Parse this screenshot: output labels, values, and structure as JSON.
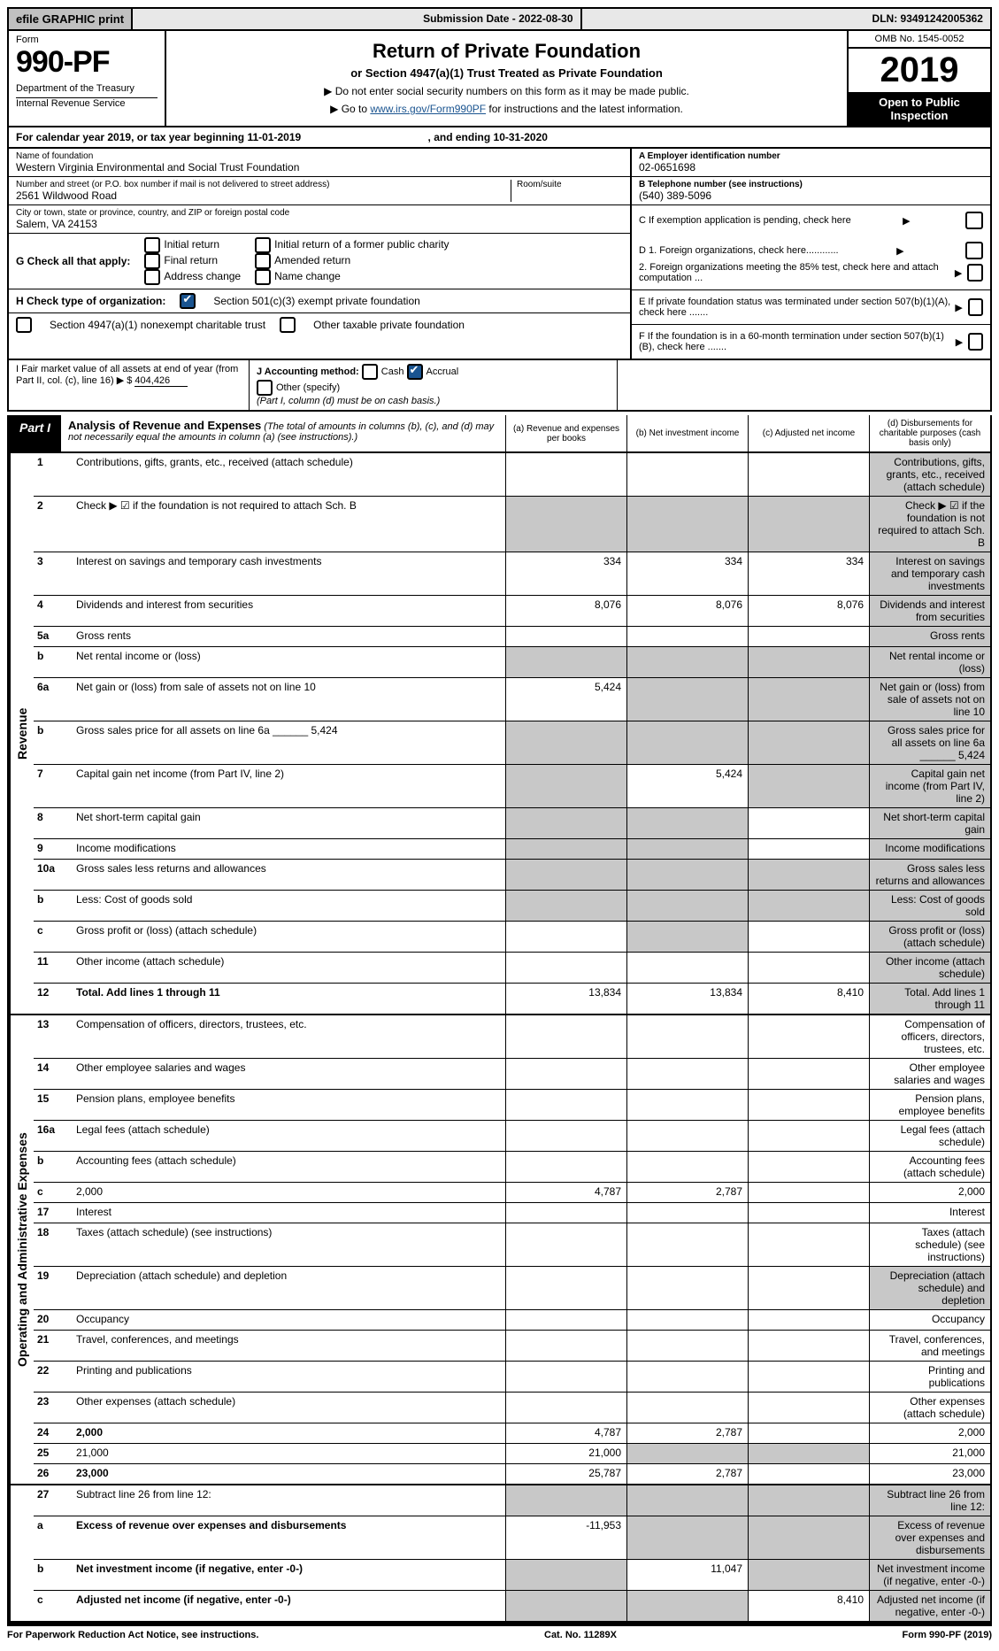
{
  "topbar": {
    "efile": "efile GRAPHIC print",
    "submission": "Submission Date - 2022-08-30",
    "dln": "DLN: 93491242005362"
  },
  "header": {
    "form_label": "Form",
    "form_number": "990-PF",
    "dept": "Department of the Treasury",
    "irs": "Internal Revenue Service",
    "title": "Return of Private Foundation",
    "subtitle": "or Section 4947(a)(1) Trust Treated as Private Foundation",
    "bullet1": "▶ Do not enter social security numbers on this form as it may be made public.",
    "bullet2_pre": "▶ Go to ",
    "bullet2_link": "www.irs.gov/Form990PF",
    "bullet2_post": " for instructions and the latest information.",
    "omb": "OMB No. 1545-0052",
    "year": "2019",
    "inspection": "Open to Public Inspection"
  },
  "calyear": {
    "text_pre": "For calendar year 2019, or tax year beginning ",
    "begin": "11-01-2019",
    "mid": " , and ending ",
    "end": "10-31-2020"
  },
  "info": {
    "name_label": "Name of foundation",
    "name": "Western Virginia Environmental and Social Trust Foundation",
    "addr_label": "Number and street (or P.O. box number if mail is not delivered to street address)",
    "addr": "2561 Wildwood Road",
    "room_label": "Room/suite",
    "city_label": "City or town, state or province, country, and ZIP or foreign postal code",
    "city": "Salem, VA  24153",
    "ein_label": "A Employer identification number",
    "ein": "02-0651698",
    "tel_label": "B Telephone number (see instructions)",
    "tel": "(540) 389-5096",
    "c": "C If exemption application is pending, check here",
    "d1": "D 1. Foreign organizations, check here............",
    "d2": "2. Foreign organizations meeting the 85% test, check here and attach computation ...",
    "e": "E  If private foundation status was terminated under section 507(b)(1)(A), check here .......",
    "f": "F  If the foundation is in a 60-month termination under section 507(b)(1)(B), check here .......",
    "g_label": "G Check all that apply:",
    "g_opts": [
      "Initial return",
      "Final return",
      "Address change",
      "Initial return of a former public charity",
      "Amended return",
      "Name change"
    ],
    "h_label": "H Check type of organization:",
    "h1": "Section 501(c)(3) exempt private foundation",
    "h2": "Section 4947(a)(1) nonexempt charitable trust",
    "h3": "Other taxable private foundation",
    "i_label": "I Fair market value of all assets at end of year (from Part II, col. (c), line 16) ▶ $",
    "i_val": "404,426",
    "j_label": "J Accounting method:",
    "j_cash": "Cash",
    "j_accrual": "Accrual",
    "j_other": "Other (specify)",
    "j_note": "(Part I, column (d) must be on cash basis.)"
  },
  "part1": {
    "label": "Part I",
    "title": "Analysis of Revenue and Expenses",
    "note": "(The total of amounts in columns (b), (c), and (d) may not necessarily equal the amounts in column (a) (see instructions).)",
    "col_a": "(a)  Revenue and expenses per books",
    "col_b": "(b)  Net investment income",
    "col_c": "(c)  Adjusted net income",
    "col_d": "(d)  Disbursements for charitable purposes (cash basis only)"
  },
  "revenue": {
    "side": "Revenue",
    "rows": [
      {
        "n": "1",
        "d": "Contributions, gifts, grants, etc., received (attach schedule)",
        "a": "",
        "b": "",
        "c": "",
        "dGrey": true
      },
      {
        "n": "2",
        "d": "Check ▶ ☑ if the foundation is not required to attach Sch. B",
        "allGrey": true
      },
      {
        "n": "3",
        "d": "Interest on savings and temporary cash investments",
        "a": "334",
        "b": "334",
        "c": "334",
        "dGrey": true
      },
      {
        "n": "4",
        "d": "Dividends and interest from securities",
        "a": "8,076",
        "b": "8,076",
        "c": "8,076",
        "dGrey": true
      },
      {
        "n": "5a",
        "d": "Gross rents",
        "a": "",
        "b": "",
        "c": "",
        "dGrey": true
      },
      {
        "n": "b",
        "d": "Net rental income or (loss)",
        "allGrey": true
      },
      {
        "n": "6a",
        "d": "Net gain or (loss) from sale of assets not on line 10",
        "a": "5,424",
        "bGrey": true,
        "cGrey": true,
        "dGrey": true
      },
      {
        "n": "b",
        "d": "Gross sales price for all assets on line 6a ______ 5,424",
        "allGrey": true
      },
      {
        "n": "7",
        "d": "Capital gain net income (from Part IV, line 2)",
        "aGrey": true,
        "b": "5,424",
        "cGrey": true,
        "dGrey": true
      },
      {
        "n": "8",
        "d": "Net short-term capital gain",
        "aGrey": true,
        "bGrey": true,
        "c": "",
        "dGrey": true
      },
      {
        "n": "9",
        "d": "Income modifications",
        "aGrey": true,
        "bGrey": true,
        "c": "",
        "dGrey": true
      },
      {
        "n": "10a",
        "d": "Gross sales less returns and allowances",
        "allGrey": true
      },
      {
        "n": "b",
        "d": "Less: Cost of goods sold",
        "allGrey": true
      },
      {
        "n": "c",
        "d": "Gross profit or (loss) (attach schedule)",
        "a": "",
        "bGrey": true,
        "c": "",
        "dGrey": true
      },
      {
        "n": "11",
        "d": "Other income (attach schedule)",
        "a": "",
        "b": "",
        "c": "",
        "dGrey": true
      },
      {
        "n": "12",
        "d": "Total. Add lines 1 through 11",
        "bold": true,
        "a": "13,834",
        "b": "13,834",
        "c": "8,410",
        "dGrey": true
      }
    ]
  },
  "expenses": {
    "side": "Operating and Administrative Expenses",
    "rows": [
      {
        "n": "13",
        "d": "Compensation of officers, directors, trustees, etc."
      },
      {
        "n": "14",
        "d": "Other employee salaries and wages"
      },
      {
        "n": "15",
        "d": "Pension plans, employee benefits"
      },
      {
        "n": "16a",
        "d": "Legal fees (attach schedule)"
      },
      {
        "n": "b",
        "d": "Accounting fees (attach schedule)"
      },
      {
        "n": "c",
        "d": "2,000",
        "a": "4,787",
        "b": "2,787"
      },
      {
        "n": "17",
        "d": "Interest"
      },
      {
        "n": "18",
        "d": "Taxes (attach schedule) (see instructions)"
      },
      {
        "n": "19",
        "d": "Depreciation (attach schedule) and depletion",
        "dGrey": true
      },
      {
        "n": "20",
        "d": "Occupancy"
      },
      {
        "n": "21",
        "d": "Travel, conferences, and meetings"
      },
      {
        "n": "22",
        "d": "Printing and publications"
      },
      {
        "n": "23",
        "d": "Other expenses (attach schedule)"
      },
      {
        "n": "24",
        "d": "2,000",
        "bold": true,
        "a": "4,787",
        "b": "2,787"
      },
      {
        "n": "25",
        "d": "21,000",
        "a": "21,000",
        "bGrey": true,
        "cGrey": true
      },
      {
        "n": "26",
        "d": "23,000",
        "bold": true,
        "a": "25,787",
        "b": "2,787"
      }
    ]
  },
  "bottom": {
    "rows": [
      {
        "n": "27",
        "d": "Subtract line 26 from line 12:",
        "allGrey": true
      },
      {
        "n": "a",
        "d": "Excess of revenue over expenses and disbursements",
        "bold": true,
        "a": "-11,953",
        "bGrey": true,
        "cGrey": true,
        "dGrey": true
      },
      {
        "n": "b",
        "d": "Net investment income (if negative, enter -0-)",
        "bold": true,
        "aGrey": true,
        "b": "11,047",
        "cGrey": true,
        "dGrey": true
      },
      {
        "n": "c",
        "d": "Adjusted net income (if negative, enter -0-)",
        "bold": true,
        "aGrey": true,
        "bGrey": true,
        "c": "8,410",
        "dGrey": true
      }
    ]
  },
  "footer": {
    "left": "For Paperwork Reduction Act Notice, see instructions.",
    "mid": "Cat. No. 11289X",
    "right": "Form 990-PF (2019)"
  }
}
